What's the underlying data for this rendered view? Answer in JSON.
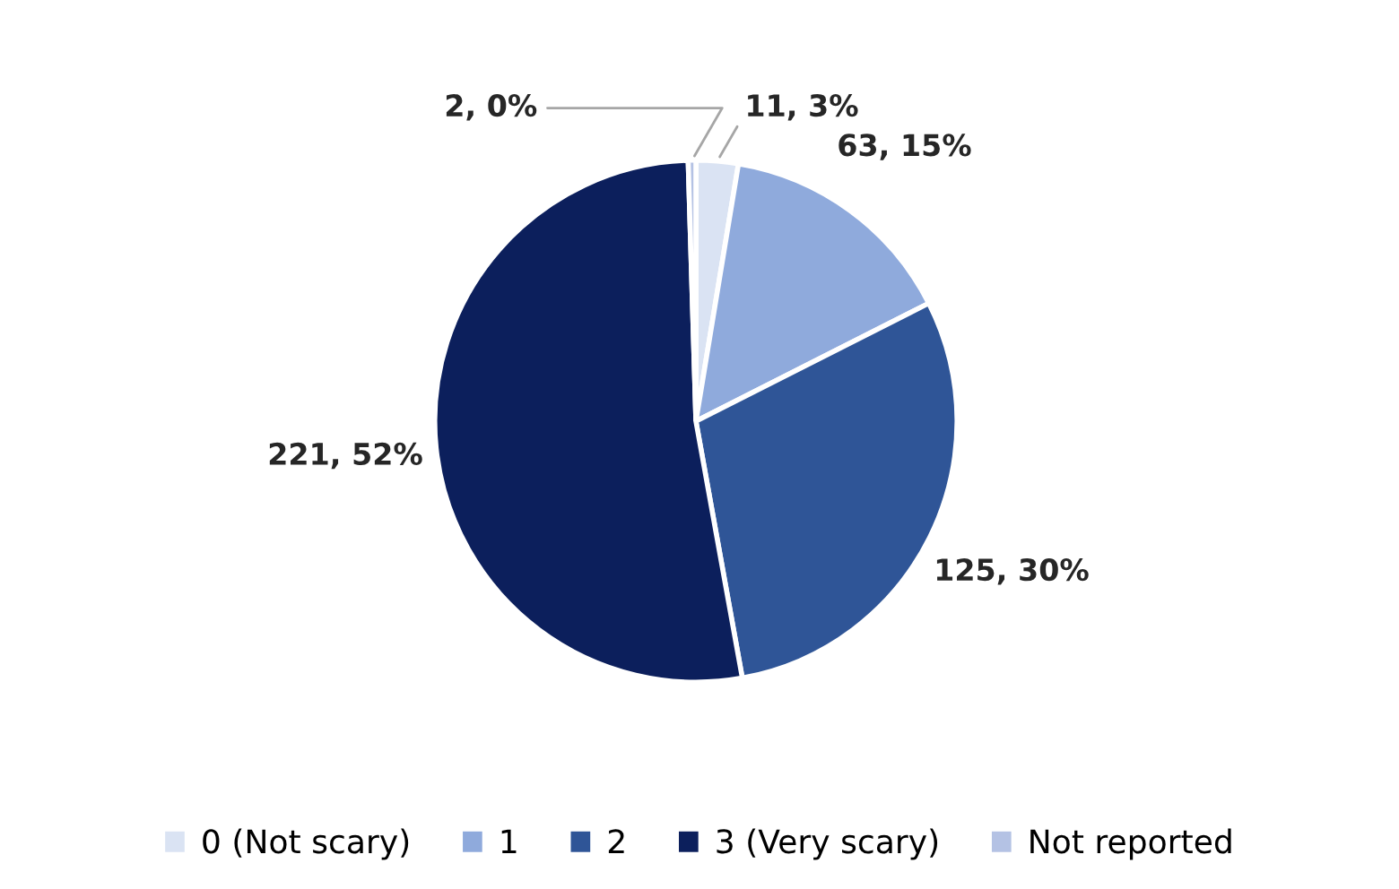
{
  "chart_data": {
    "type": "pie",
    "categories": [
      "0 (Not scary)",
      "1",
      "2",
      "3 (Very scary)",
      "Not reported"
    ],
    "values": [
      11,
      63,
      125,
      221,
      2
    ],
    "colors": [
      "#dae3f3",
      "#8faadc",
      "#2f5597",
      "#0c1f5c",
      "#b4c2e4"
    ],
    "value_labels": [
      "11, 3%",
      "63, 15%",
      "125, 30%",
      "221, 52%",
      "2, 0%"
    ],
    "legend": "bottom"
  }
}
